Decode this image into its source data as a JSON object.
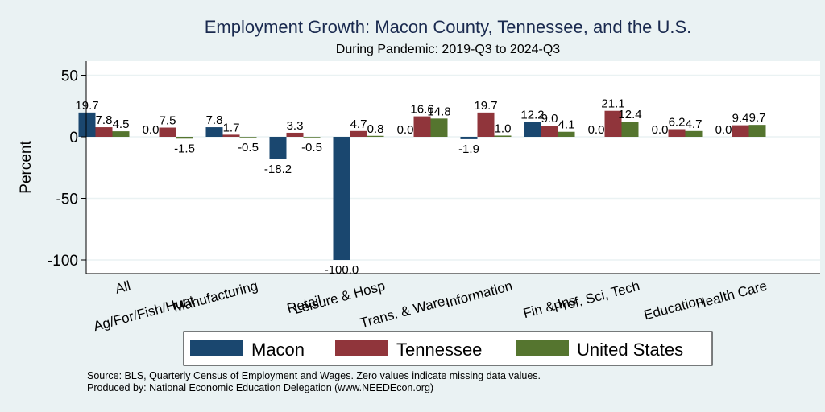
{
  "chart_data": {
    "type": "bar",
    "title": "Employment Growth: Macon County, Tennessee, and the U.S.",
    "subtitle": "During Pandemic: 2019-Q3 to 2024-Q3",
    "xlabel": "",
    "ylabel": "Percent",
    "ylim": [
      -110,
      60
    ],
    "yticks": [
      50,
      0,
      -50,
      -100
    ],
    "grid": true,
    "legend_position": "bottom",
    "categories": [
      "All",
      "Ag/For/Fish/Hunt",
      "Manufacturing",
      "Retail",
      "Leisure & Hosp",
      "Trans. & Ware.",
      "Information",
      "Fin & Ins",
      "Prof, Sci, Tech",
      "Education",
      "Health Care"
    ],
    "series": [
      {
        "name": "Macon",
        "color": "#1a476f",
        "values": [
          19.7,
          0.0,
          7.8,
          -18.2,
          -100.0,
          0.0,
          -1.9,
          12.2,
          0.0,
          0.0,
          0.0
        ]
      },
      {
        "name": "Tennessee",
        "color": "#90353b",
        "values": [
          7.8,
          7.5,
          1.7,
          3.3,
          4.7,
          16.6,
          19.7,
          9.0,
          21.1,
          6.2,
          9.4
        ]
      },
      {
        "name": "United States",
        "color": "#55752f",
        "values": [
          4.5,
          -1.5,
          -0.5,
          -0.5,
          0.8,
          14.8,
          1.0,
          4.1,
          12.4,
          4.7,
          9.7
        ]
      }
    ],
    "notes": [
      "Source: BLS, Quarterly Census of Employment and Wages. Zero values indicate missing data values.",
      "Produced by: National Economic Education Delegation (www.NEEDEcon.org)"
    ]
  }
}
